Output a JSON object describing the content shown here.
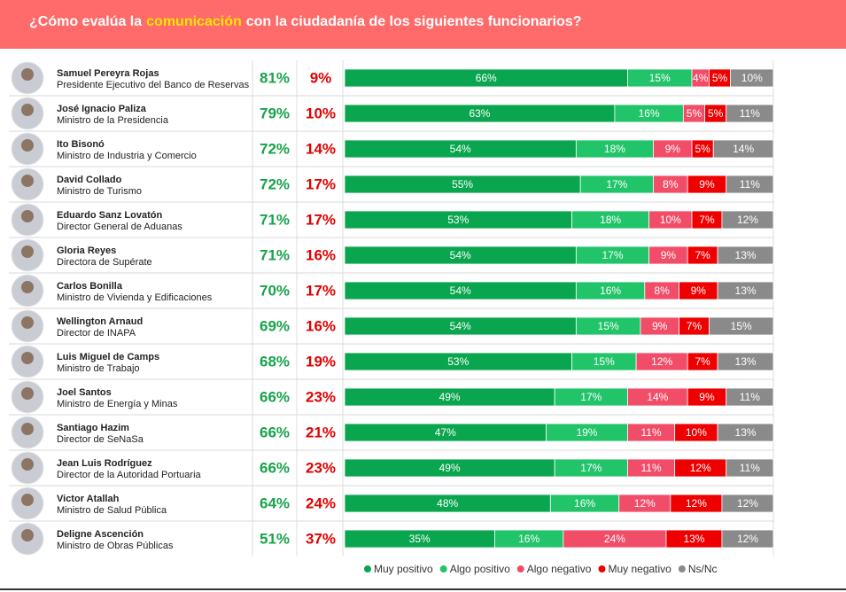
{
  "chart_data": {
    "type": "stacked-bar",
    "title_before": "¿Cómo evalúa la",
    "title_highlight": "comunicación",
    "title_after": "con la ciudadanía de los siguientes funcionarios?",
    "names": [
      "Samuel Pereyra Rojas",
      "José Ignacio Paliza",
      "Ito Bisonó",
      "David Collado",
      "Eduardo Sanz Lovatón",
      "Gloria Reyes",
      "Carlos Bonilla",
      "Wellington Arnaud",
      "Luis Miguel de Camps",
      "Joel Santos",
      "Santiago Hazim",
      "Jean Luis Rodríguez",
      "Victor Atallah",
      "Deligne Ascención"
    ],
    "roles": [
      "Presidente Ejecutivo del Banco de Reservas",
      "Ministro de la Presidencia",
      "Ministro de Industria y Comercio",
      "Ministro de Turismo",
      "Director General de Aduanas",
      "Directora de Supérate",
      "Ministro de Vivienda y Edificaciones",
      "Director de INAPA",
      "Ministro de Trabajo",
      "Ministro de Energía y Minas",
      "Director de SeNaSa",
      "Director de la Autoridad Portuaria",
      "Ministro de Salud Pública",
      "Ministro de Obras Públicas"
    ],
    "positive": [
      81,
      79,
      72,
      72,
      71,
      71,
      70,
      69,
      68,
      66,
      66,
      66,
      64,
      51
    ],
    "positive_labels": [
      "81%",
      "79%",
      "72%",
      "72%",
      "71%",
      "71%",
      "70%",
      "69%",
      "68%",
      "66%",
      "66%",
      "66%",
      "64%",
      "51%"
    ],
    "negative": [
      9,
      10,
      14,
      17,
      17,
      16,
      17,
      16,
      19,
      23,
      21,
      23,
      24,
      37
    ],
    "negative_labels": [
      "9%",
      "10%",
      "14%",
      "17%",
      "17%",
      "16%",
      "17%",
      "16%",
      "19%",
      "23%",
      "21%",
      "23%",
      "24%",
      "37%"
    ],
    "xlim": [
      0,
      100
    ],
    "series": [
      {
        "name": "Muy positivo",
        "color": "#0aa64f",
        "values": [
          66,
          63,
          54,
          55,
          53,
          54,
          54,
          54,
          53,
          49,
          47,
          49,
          48,
          35
        ],
        "value_labels": [
          "66%",
          "63%",
          "54%",
          "55%",
          "53%",
          "54%",
          "54%",
          "54%",
          "53%",
          "49%",
          "47%",
          "49%",
          "48%",
          "35%"
        ]
      },
      {
        "name": "Algo positivo",
        "color": "#22c46a",
        "values": [
          15,
          16,
          18,
          17,
          18,
          17,
          16,
          15,
          15,
          17,
          19,
          17,
          16,
          16
        ],
        "value_labels": [
          "15%",
          "16%",
          "18%",
          "17%",
          "18%",
          "17%",
          "16%",
          "15%",
          "15%",
          "17%",
          "19%",
          "17%",
          "16%",
          "16%"
        ]
      },
      {
        "name": "Algo negativo",
        "color": "#f24d68",
        "values": [
          4,
          5,
          9,
          8,
          10,
          9,
          8,
          9,
          12,
          14,
          11,
          11,
          12,
          24
        ],
        "value_labels": [
          "4%",
          "5%",
          "9%",
          "8%",
          "10%",
          "9%",
          "8%",
          "9%",
          "12%",
          "14%",
          "11%",
          "11%",
          "12%",
          "24%"
        ]
      },
      {
        "name": "Muy negativo",
        "color": "#ee0000",
        "values": [
          5,
          5,
          5,
          9,
          7,
          7,
          9,
          7,
          7,
          9,
          10,
          12,
          12,
          13
        ],
        "value_labels": [
          "5%",
          "5%",
          "5%",
          "9%",
          "7%",
          "7%",
          "9%",
          "7%",
          "7%",
          "9%",
          "10%",
          "12%",
          "12%",
          "13%"
        ]
      },
      {
        "name": "Ns/Nc",
        "color": "#8a8a8a",
        "values": [
          10,
          11,
          14,
          11,
          12,
          13,
          13,
          15,
          13,
          11,
          13,
          11,
          12,
          12
        ],
        "value_labels": [
          "10%",
          "11%",
          "14%",
          "11%",
          "12%",
          "13%",
          "13%",
          "15%",
          "13%",
          "11%",
          "13%",
          "11%",
          "12%",
          "12%"
        ]
      }
    ]
  }
}
